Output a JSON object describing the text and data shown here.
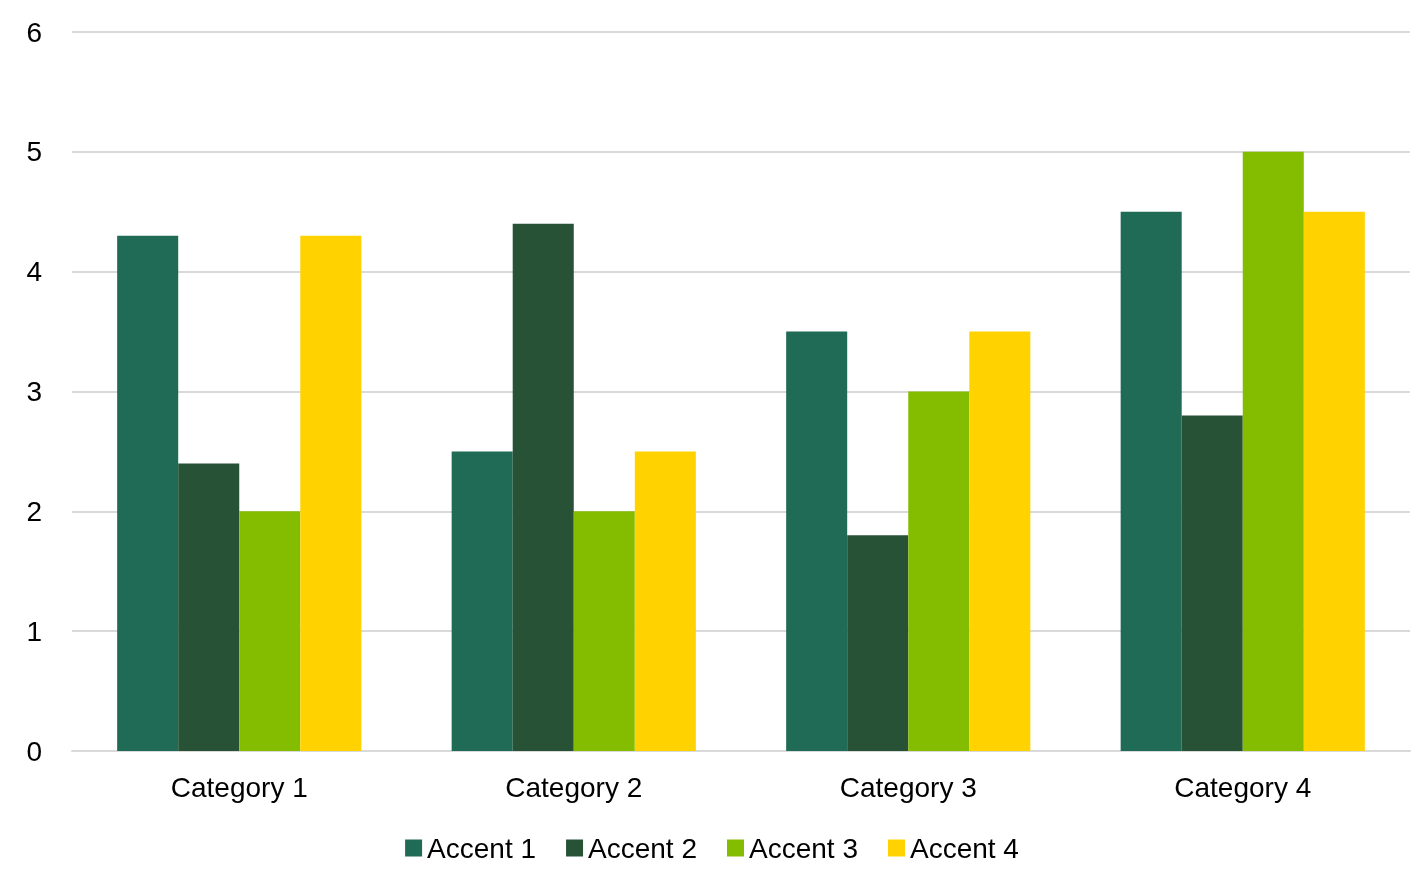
{
  "chart_data": {
    "type": "bar",
    "categories": [
      "Category 1",
      "Category 2",
      "Category 3",
      "Category 4"
    ],
    "series": [
      {
        "name": "Accent 1",
        "color": "#1f6b55",
        "values": [
          4.3,
          2.5,
          3.5,
          4.5
        ]
      },
      {
        "name": "Accent 2",
        "color": "#285236",
        "values": [
          2.4,
          4.4,
          1.8,
          2.8
        ]
      },
      {
        "name": "Accent 3",
        "color": "#84bd00",
        "values": [
          2,
          2,
          3,
          5
        ]
      },
      {
        "name": "Accent 4",
        "color": "#ffd200",
        "values": [
          4.3,
          2.5,
          3.5,
          4.5
        ]
      }
    ],
    "ylim": [
      0,
      6
    ],
    "yticks": [
      0,
      1,
      2,
      3,
      4,
      5,
      6
    ],
    "grid": "y",
    "legend": "bottom"
  }
}
